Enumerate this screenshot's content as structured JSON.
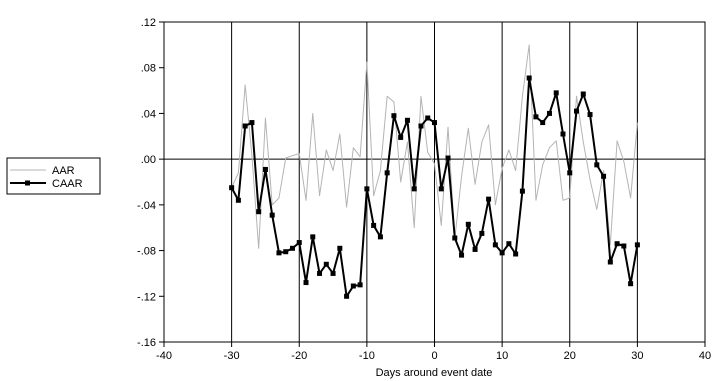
{
  "chart_data": {
    "type": "line",
    "xlabel": "Days around event date",
    "ylabel": "",
    "xlim": [
      -40,
      40
    ],
    "ylim": [
      -0.16,
      0.12
    ],
    "x_ticks": [
      -40,
      -30,
      -20,
      -10,
      0,
      10,
      20,
      30,
      40
    ],
    "x_tick_labels": [
      "-40",
      "-30",
      "-20",
      "-10",
      "0",
      "10",
      "20",
      "30",
      "40"
    ],
    "y_ticks": [
      -0.16,
      -0.12,
      -0.08,
      -0.04,
      0.0,
      0.04,
      0.08,
      0.12
    ],
    "y_tick_labels": [
      "-.16",
      "-.12",
      "-.08",
      "-.04",
      ".00",
      ".04",
      ".08",
      ".12"
    ],
    "vertical_gridlines_at": [
      -30,
      -20,
      -10,
      0,
      10,
      20,
      30
    ],
    "zero_line": true,
    "legend_position": "left",
    "x": [
      -30,
      -29,
      -28,
      -27,
      -26,
      -25,
      -24,
      -23,
      -22,
      -21,
      -20,
      -19,
      -18,
      -17,
      -16,
      -15,
      -14,
      -13,
      -12,
      -11,
      -10,
      -9,
      -8,
      -7,
      -6,
      -5,
      -4,
      -3,
      -2,
      -1,
      0,
      1,
      2,
      3,
      4,
      5,
      6,
      7,
      8,
      9,
      10,
      11,
      12,
      13,
      14,
      15,
      16,
      17,
      18,
      19,
      20,
      21,
      22,
      23,
      24,
      25,
      26,
      27,
      28,
      29,
      30
    ],
    "series": [
      {
        "name": "AAR",
        "color": "#b4b4b4",
        "marker": "none",
        "values": [
          -0.025,
          -0.012,
          0.065,
          0.003,
          -0.078,
          0.036,
          -0.04,
          -0.034,
          0.001,
          0.003,
          0.005,
          -0.036,
          0.04,
          -0.032,
          0.008,
          -0.01,
          0.022,
          -0.042,
          0.01,
          0.002,
          0.085,
          -0.032,
          -0.01,
          0.055,
          0.05,
          -0.02,
          0.015,
          -0.06,
          0.055,
          0.006,
          -0.004,
          -0.058,
          0.028,
          -0.07,
          -0.015,
          0.027,
          -0.022,
          0.015,
          0.03,
          -0.04,
          -0.008,
          0.008,
          -0.01,
          0.055,
          0.1,
          -0.036,
          -0.005,
          0.01,
          0.016,
          -0.036,
          -0.034,
          0.055,
          0.015,
          -0.018,
          -0.044,
          -0.01,
          -0.075,
          0.016,
          -0.002,
          -0.034,
          0.032
        ]
      },
      {
        "name": "CAAR",
        "color": "#000000",
        "marker": "square",
        "values": [
          -0.025,
          -0.036,
          0.029,
          0.032,
          -0.046,
          -0.009,
          -0.049,
          -0.082,
          -0.081,
          -0.078,
          -0.073,
          -0.108,
          -0.068,
          -0.1,
          -0.092,
          -0.1,
          -0.078,
          -0.12,
          -0.111,
          -0.11,
          -0.026,
          -0.058,
          -0.068,
          -0.012,
          0.038,
          0.019,
          0.034,
          -0.026,
          0.029,
          0.036,
          0.032,
          -0.026,
          0.001,
          -0.069,
          -0.084,
          -0.057,
          -0.079,
          -0.065,
          -0.035,
          -0.075,
          -0.082,
          -0.074,
          -0.083,
          -0.028,
          0.071,
          0.037,
          0.032,
          0.04,
          0.058,
          0.022,
          -0.012,
          0.042,
          0.057,
          0.039,
          -0.005,
          -0.015,
          -0.09,
          -0.074,
          -0.076,
          -0.109,
          -0.075
        ]
      }
    ]
  }
}
